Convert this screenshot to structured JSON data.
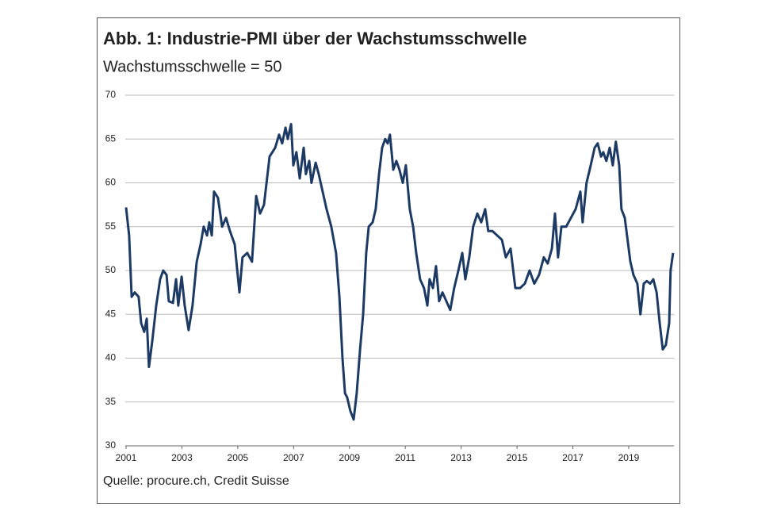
{
  "chart_data": {
    "type": "line",
    "title": "Abb. 1: Industrie-PMI über der Wachstumsschwelle",
    "subtitle": "Wachstumsschwelle = 50",
    "source": "Quelle: procure.ch, Credit Suisse",
    "xlim": [
      2001,
      2020.6
    ],
    "xticks": [
      2001,
      2003,
      2005,
      2007,
      2009,
      2011,
      2013,
      2015,
      2017,
      2019
    ],
    "ylim": [
      30,
      70
    ],
    "yticks": [
      30,
      35,
      40,
      45,
      50,
      55,
      60,
      65,
      70
    ],
    "grid": true,
    "series": [
      {
        "color": "#1c3a63",
        "x": [
          2001.0,
          2001.11,
          2001.2,
          2001.31,
          2001.45,
          2001.54,
          2001.65,
          2001.74,
          2001.82,
          2001.94,
          2002.08,
          2002.22,
          2002.33,
          2002.45,
          2002.53,
          2002.68,
          2002.79,
          2002.87,
          2002.99,
          2003.1,
          2003.24,
          2003.38,
          2003.53,
          2003.67,
          2003.78,
          2003.9,
          2003.98,
          2004.07,
          2004.15,
          2004.29,
          2004.44,
          2004.58,
          2004.72,
          2004.89,
          2005.06,
          2005.17,
          2005.34,
          2005.51,
          2005.66,
          2005.8,
          2005.94,
          2006.14,
          2006.34,
          2006.48,
          2006.59,
          2006.71,
          2006.79,
          2006.91,
          2006.99,
          2007.1,
          2007.22,
          2007.36,
          2007.44,
          2007.56,
          2007.64,
          2007.79,
          2007.9,
          2008.04,
          2008.18,
          2008.35,
          2008.52,
          2008.64,
          2008.75,
          2008.84,
          2008.92,
          2009.03,
          2009.15,
          2009.26,
          2009.38,
          2009.49,
          2009.6,
          2009.69,
          2009.83,
          2009.94,
          2010.06,
          2010.17,
          2010.28,
          2010.37,
          2010.45,
          2010.57,
          2010.68,
          2010.79,
          2010.91,
          2011.02,
          2011.16,
          2011.28,
          2011.39,
          2011.53,
          2011.67,
          2011.79,
          2011.87,
          2011.99,
          2012.1,
          2012.21,
          2012.33,
          2012.47,
          2012.61,
          2012.75,
          2012.9,
          2013.04,
          2013.15,
          2013.29,
          2013.43,
          2013.58,
          2013.72,
          2013.86,
          2013.97,
          2014.12,
          2014.29,
          2014.46,
          2014.6,
          2014.77,
          2014.94,
          2015.11,
          2015.28,
          2015.45,
          2015.62,
          2015.79,
          2015.96,
          2016.1,
          2016.25,
          2016.36,
          2016.47,
          2016.59,
          2016.76,
          2016.93,
          2017.1,
          2017.27,
          2017.35,
          2017.49,
          2017.64,
          2017.78,
          2017.89,
          2018.01,
          2018.09,
          2018.2,
          2018.32,
          2018.43,
          2018.54,
          2018.66,
          2018.74,
          2018.86,
          2018.94,
          2019.06,
          2019.17,
          2019.31,
          2019.42,
          2019.54,
          2019.65,
          2019.77,
          2019.88,
          2020.0,
          2020.11,
          2020.22,
          2020.33,
          2020.45,
          2020.5,
          2020.59
        ],
        "values": [
          57.2,
          54,
          47,
          47.5,
          47,
          44,
          43,
          44.5,
          39,
          42,
          46,
          49,
          50,
          49.5,
          46.5,
          46.3,
          49,
          46,
          49.3,
          46,
          43.2,
          46,
          51,
          53,
          55,
          54,
          55.5,
          54,
          59,
          58.3,
          55,
          56,
          54.5,
          53,
          47.5,
          51.5,
          52,
          51,
          58.5,
          56.5,
          57.5,
          63,
          64,
          65.5,
          64.5,
          66.3,
          65,
          66.7,
          62,
          63.5,
          60.5,
          64,
          61,
          62.5,
          60,
          62.3,
          61,
          59,
          57,
          55,
          52,
          47,
          40,
          36,
          35.5,
          34,
          33,
          36,
          41,
          45,
          52,
          55,
          55.5,
          57,
          61,
          64,
          65,
          64.5,
          65.5,
          61.5,
          62.5,
          61.5,
          60,
          62,
          57,
          55,
          52,
          49,
          48,
          46,
          49,
          48,
          50.5,
          46.5,
          47.5,
          46.5,
          45.5,
          48,
          50,
          52,
          49,
          51.5,
          55,
          56.5,
          55.5,
          57,
          54.5,
          54.5,
          54,
          53.5,
          51.5,
          52.5,
          48,
          48,
          48.5,
          50,
          48.5,
          49.5,
          51.5,
          50.8,
          52.5,
          56.5,
          51.5,
          55,
          55,
          56,
          57,
          59,
          55.5,
          60,
          62,
          64,
          64.5,
          63,
          63.5,
          62.5,
          64,
          62,
          64.7,
          62,
          57,
          56,
          54,
          51,
          49.5,
          48.5,
          45,
          48.5,
          48.8,
          48.5,
          49,
          47.5,
          44,
          41,
          41.5,
          44,
          50,
          52
        ]
      }
    ]
  }
}
